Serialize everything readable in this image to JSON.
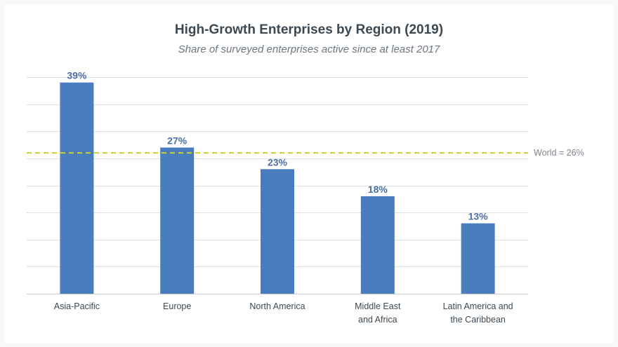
{
  "chart_data": {
    "type": "bar",
    "title": "High-Growth Enterprises by Region (2019)",
    "subtitle": "Share of surveyed enterprises active since at least 2017",
    "categories": [
      [
        "Asia-Pacific"
      ],
      [
        "Europe"
      ],
      [
        "North America"
      ],
      [
        "Middle East",
        "and Africa"
      ],
      [
        "Latin America and",
        "the Caribbean"
      ]
    ],
    "values": [
      39,
      27,
      23,
      18,
      13
    ],
    "value_labels": [
      "39%",
      "27%",
      "23%",
      "18%",
      "13%"
    ],
    "unit": "%",
    "ylim": [
      0,
      40
    ],
    "grid": true,
    "reference_line": {
      "value": 26,
      "label": "World = 26%"
    },
    "colors": {
      "bar": "#4a7dbd",
      "reference": "#c8cf3a",
      "value_label": "#4a6fa5"
    },
    "xlabel": "",
    "ylabel": ""
  }
}
